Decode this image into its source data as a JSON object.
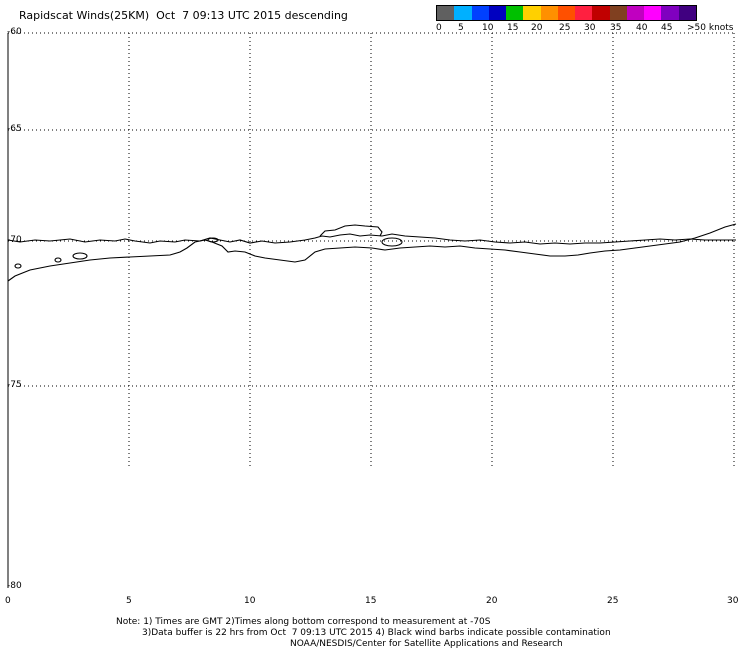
{
  "title": "Rapidscat Winds(25KM)  Oct  7 09:13 UTC 2015 descending",
  "legend": {
    "colors": [
      "#606060",
      "#00b0ff",
      "#0040ff",
      "#0000c0",
      "#00c000",
      "#ffd000",
      "#ff9000",
      "#ff5000",
      "#ff2040",
      "#c00000",
      "#804020",
      "#c000c0",
      "#ff00ff",
      "#8000c0",
      "#400080"
    ],
    "labels": [
      "0",
      "5",
      "10",
      "15",
      "20",
      "25",
      "30",
      "35",
      "40",
      "45",
      ">50 knots"
    ]
  },
  "lat_labels": [
    "-60",
    "-65",
    "-70",
    "-75",
    "-80"
  ],
  "lon_labels": [
    "0",
    "5",
    "10",
    "15",
    "20",
    "25",
    "30"
  ],
  "notes": [
    "Note: 1) Times are GMT 2)Times along bottom correspond to measurement at -70S",
    "3)Data buffer is 22 hrs from Oct  7 09:13 UTC 2015 4) Black wind barbs indicate possible contamination",
    "NOAA/NESDIS/Center for Satellite Applications and Research"
  ]
}
